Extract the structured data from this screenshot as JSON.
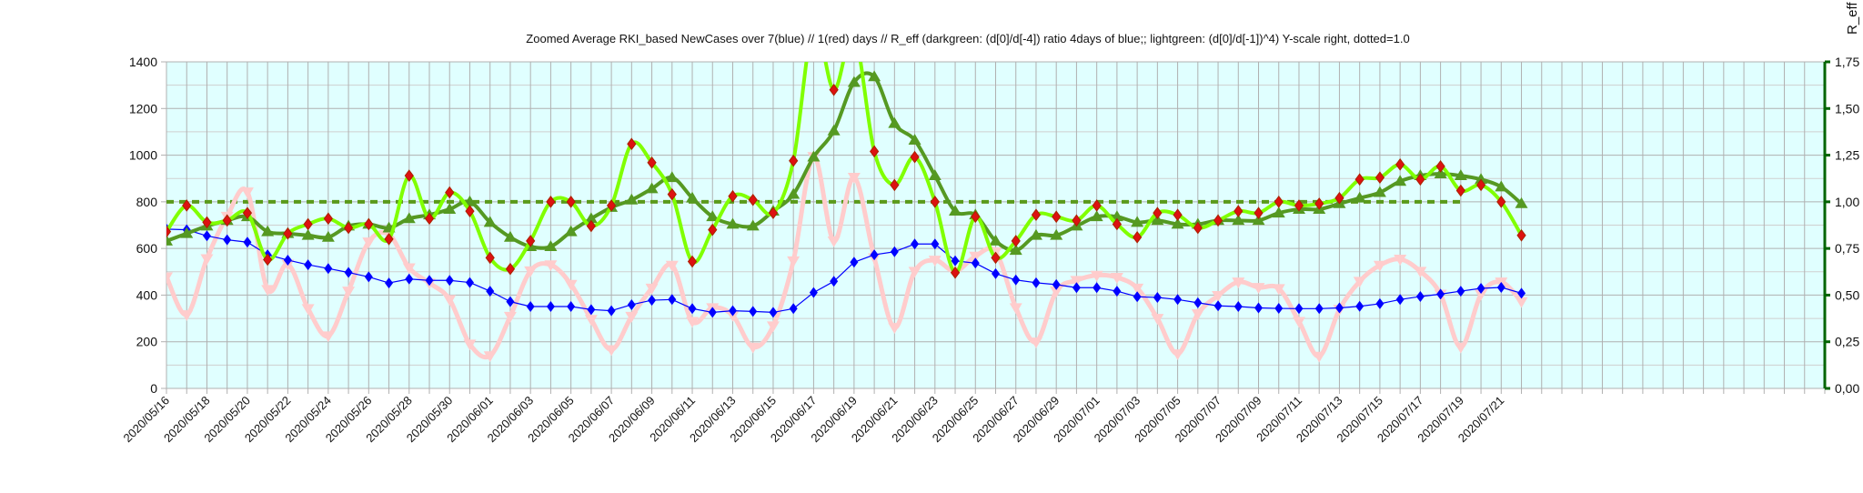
{
  "chart_data": {
    "type": "line",
    "title": "Zoomed Average RKI_based NewCases over 7(blue) // 1(red) days //  R_eff (darkgreen: (d[0]/d[-4]) ratio 4days of blue;; lightgreen: (d[0]/d[-1])^4) Y-scale right, dotted=1.0",
    "y2label": "R_eff",
    "ylim": [
      0,
      1400
    ],
    "y_ticks": [
      "0",
      "200",
      "400",
      "600",
      "800",
      "1000",
      "1200",
      "1400"
    ],
    "y2lim": [
      0,
      1.75
    ],
    "y2_ticks": [
      "0,00",
      "0,25",
      "0,50",
      "0,75",
      "1,00",
      "1,25",
      "1,50",
      "1,75"
    ],
    "grid": true,
    "background_color": "#e0ffff",
    "start_date": "2020/05/16",
    "x_tick_labels": [
      "2020/05/16",
      "2020/05/18",
      "2020/05/20",
      "2020/05/22",
      "2020/05/24",
      "2020/05/26",
      "2020/05/28",
      "2020/05/30",
      "2020/06/01",
      "2020/06/03",
      "2020/06/05",
      "2020/06/07",
      "2020/06/09",
      "2020/06/11",
      "2020/06/13",
      "2020/06/15",
      "2020/06/17",
      "2020/06/19",
      "2020/06/21",
      "2020/06/23",
      "2020/06/25",
      "2020/06/27",
      "2020/06/29",
      "2020/07/01",
      "2020/07/03",
      "2020/07/05",
      "2020/07/07",
      "2020/07/09",
      "2020/07/11",
      "2020/07/13",
      "2020/07/15",
      "2020/07/17",
      "2020/07/19",
      "2020/07/21"
    ],
    "series": [
      {
        "key": "one_day",
        "axis": "left",
        "color": "#ffcccc",
        "marker": "triangle-down",
        "values": [
          478,
          316,
          556,
          738,
          842,
          424,
          533,
          342,
          225,
          417,
          628,
          660,
          517,
          452,
          381,
          190,
          140,
          309,
          504,
          530,
          446,
          296,
          166,
          309,
          430,
          528,
          287,
          346,
          313,
          177,
          268,
          547,
          994,
          632,
          905,
          560,
          261,
          502,
          550,
          502,
          567,
          586,
          346,
          199,
          417,
          463,
          485,
          476,
          430,
          300,
          148,
          320,
          398,
          456,
          433,
          428,
          287,
          138,
          339,
          459,
          528,
          554,
          502,
          404,
          177,
          404,
          456,
          372
        ]
      },
      {
        "key": "seven_day",
        "axis": "left",
        "color": "#0000ff",
        "marker": "diamond",
        "values": [
          683,
          680,
          654,
          637,
          627,
          573,
          550,
          530,
          514,
          497,
          478,
          452,
          469,
          463,
          463,
          454,
          417,
          372,
          351,
          351,
          351,
          338,
          333,
          359,
          378,
          381,
          342,
          326,
          333,
          330,
          326,
          342,
          411,
          459,
          541,
          573,
          586,
          619,
          619,
          547,
          537,
          492,
          465,
          453,
          445,
          432,
          432,
          417,
          393,
          390,
          381,
          367,
          354,
          351,
          345,
          343,
          342,
          342,
          345,
          352,
          363,
          381,
          394,
          404,
          417,
          429,
          433,
          408
        ]
      },
      {
        "key": "r_eff_darkgreen",
        "axis": "right",
        "color": "#559922",
        "marker": "triangle-up",
        "values": [
          0.79,
          0.83,
          0.87,
          0.9,
          0.92,
          0.84,
          0.83,
          0.82,
          0.81,
          0.87,
          0.88,
          0.86,
          0.91,
          0.93,
          0.96,
          1.0,
          0.89,
          0.81,
          0.76,
          0.76,
          0.84,
          0.91,
          0.97,
          1.01,
          1.07,
          1.13,
          1.02,
          0.92,
          0.88,
          0.87,
          0.95,
          1.04,
          1.24,
          1.38,
          1.64,
          1.67,
          1.42,
          1.33,
          1.14,
          0.95,
          0.93,
          0.79,
          0.74,
          0.82,
          0.82,
          0.87,
          0.92,
          0.92,
          0.89,
          0.9,
          0.88,
          0.88,
          0.9,
          0.9,
          0.9,
          0.94,
          0.96,
          0.96,
          0.99,
          1.02,
          1.05,
          1.11,
          1.14,
          1.15,
          1.14,
          1.12,
          1.08,
          0.99
        ]
      },
      {
        "key": "r_eff_lightgreen",
        "axis": "right",
        "color": "#80ff00",
        "marker": "diamond",
        "marker_color": "#dd1111",
        "values": [
          0.84,
          0.98,
          0.89,
          0.9,
          0.94,
          0.69,
          0.83,
          0.88,
          0.91,
          0.86,
          0.88,
          0.8,
          1.14,
          0.91,
          1.05,
          0.95,
          0.7,
          0.64,
          0.79,
          1.0,
          1.0,
          0.87,
          0.98,
          1.31,
          1.21,
          1.04,
          0.68,
          0.85,
          1.03,
          1.01,
          0.94,
          1.22,
          1.95,
          1.6,
          1.9,
          1.27,
          1.09,
          1.24,
          1.0,
          0.62,
          0.92,
          0.7,
          0.79,
          0.93,
          0.92,
          0.9,
          0.98,
          0.88,
          0.81,
          0.94,
          0.93,
          0.86,
          0.9,
          0.95,
          0.94,
          1.0,
          0.98,
          0.99,
          1.02,
          1.12,
          1.13,
          1.2,
          1.12,
          1.19,
          1.06,
          1.09,
          1.0,
          0.82
        ]
      }
    ],
    "reference_line": {
      "axis": "right",
      "value": 1.0,
      "style": "dotted",
      "color": "#5a9a1a",
      "from_date": "2020/05/16",
      "to_date": "2020/07/19"
    },
    "axis_color_right": "#006400"
  }
}
